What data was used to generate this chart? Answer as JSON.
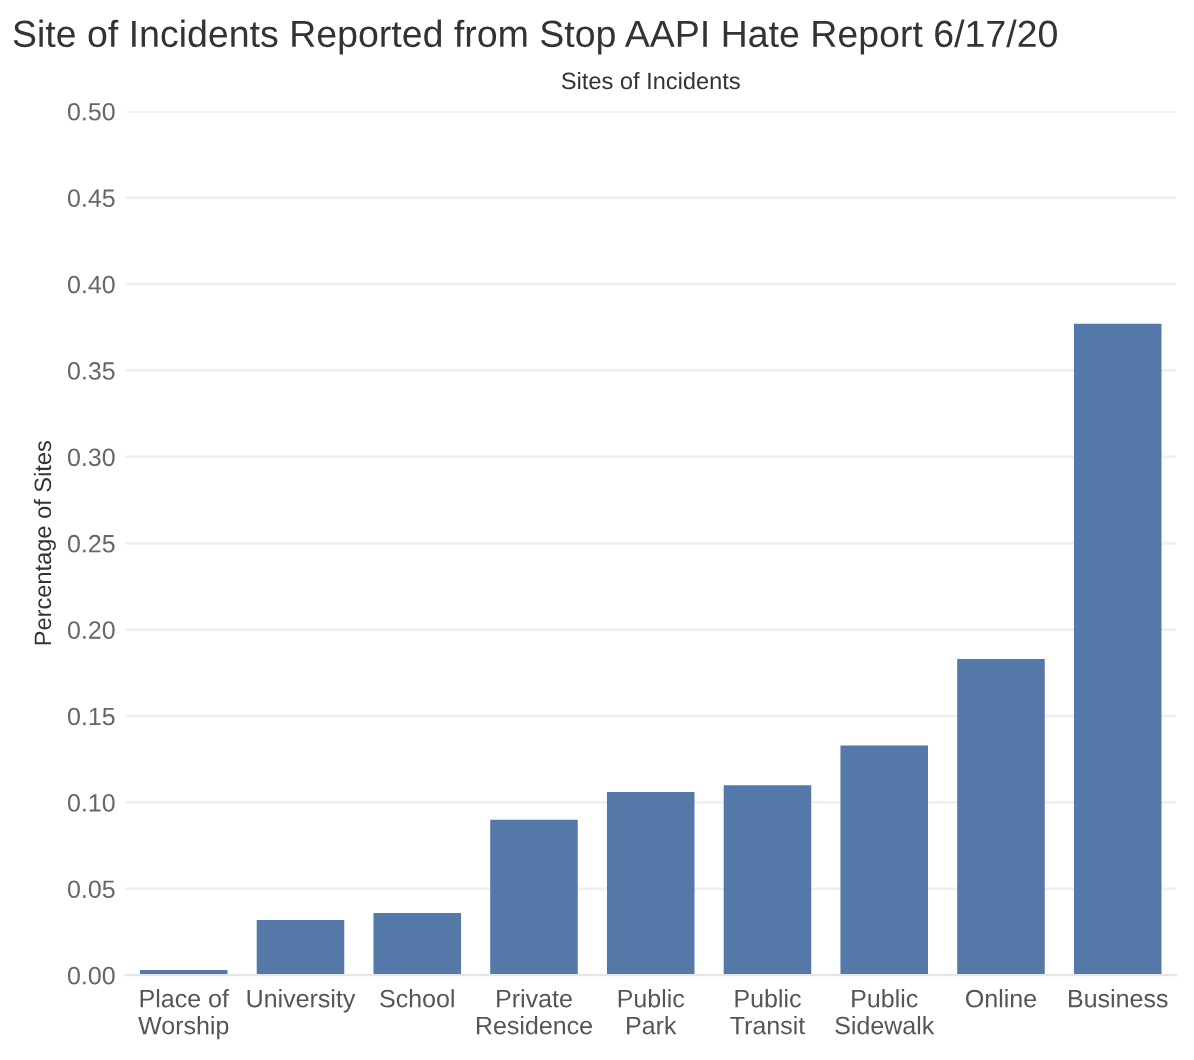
{
  "chart_data": {
    "type": "bar",
    "title": "Site of Incidents Reported from Stop AAPI Hate Report 6/17/20",
    "subtitle": "Sites of Incidents",
    "ylabel": "Percentage of Sites",
    "categories": [
      "Place of\nWorship",
      "University",
      "School",
      "Private\nResidence",
      "Public\nPark",
      "Public\nTransit",
      "Public\nSidewalk",
      "Online",
      "Business"
    ],
    "values": [
      0.003,
      0.032,
      0.036,
      0.09,
      0.106,
      0.11,
      0.133,
      0.183,
      0.377
    ],
    "color": "#5479a8",
    "ylim": [
      0,
      0.5
    ],
    "yticks": [
      {
        "value": 0,
        "label": "0.00"
      },
      {
        "value": 0.05,
        "label": "0.05"
      },
      {
        "value": 0.1,
        "label": "0.10"
      },
      {
        "value": 0.15,
        "label": "0.15"
      },
      {
        "value": 0.2,
        "label": "0.20"
      },
      {
        "value": 0.25,
        "label": "0.25"
      },
      {
        "value": 0.3,
        "label": "0.30"
      },
      {
        "value": 0.35,
        "label": "0.35"
      },
      {
        "value": 0.4,
        "label": "0.40"
      },
      {
        "value": 0.45,
        "label": "0.45"
      },
      {
        "value": 0.5,
        "label": "0.50"
      }
    ],
    "grid": "y"
  }
}
